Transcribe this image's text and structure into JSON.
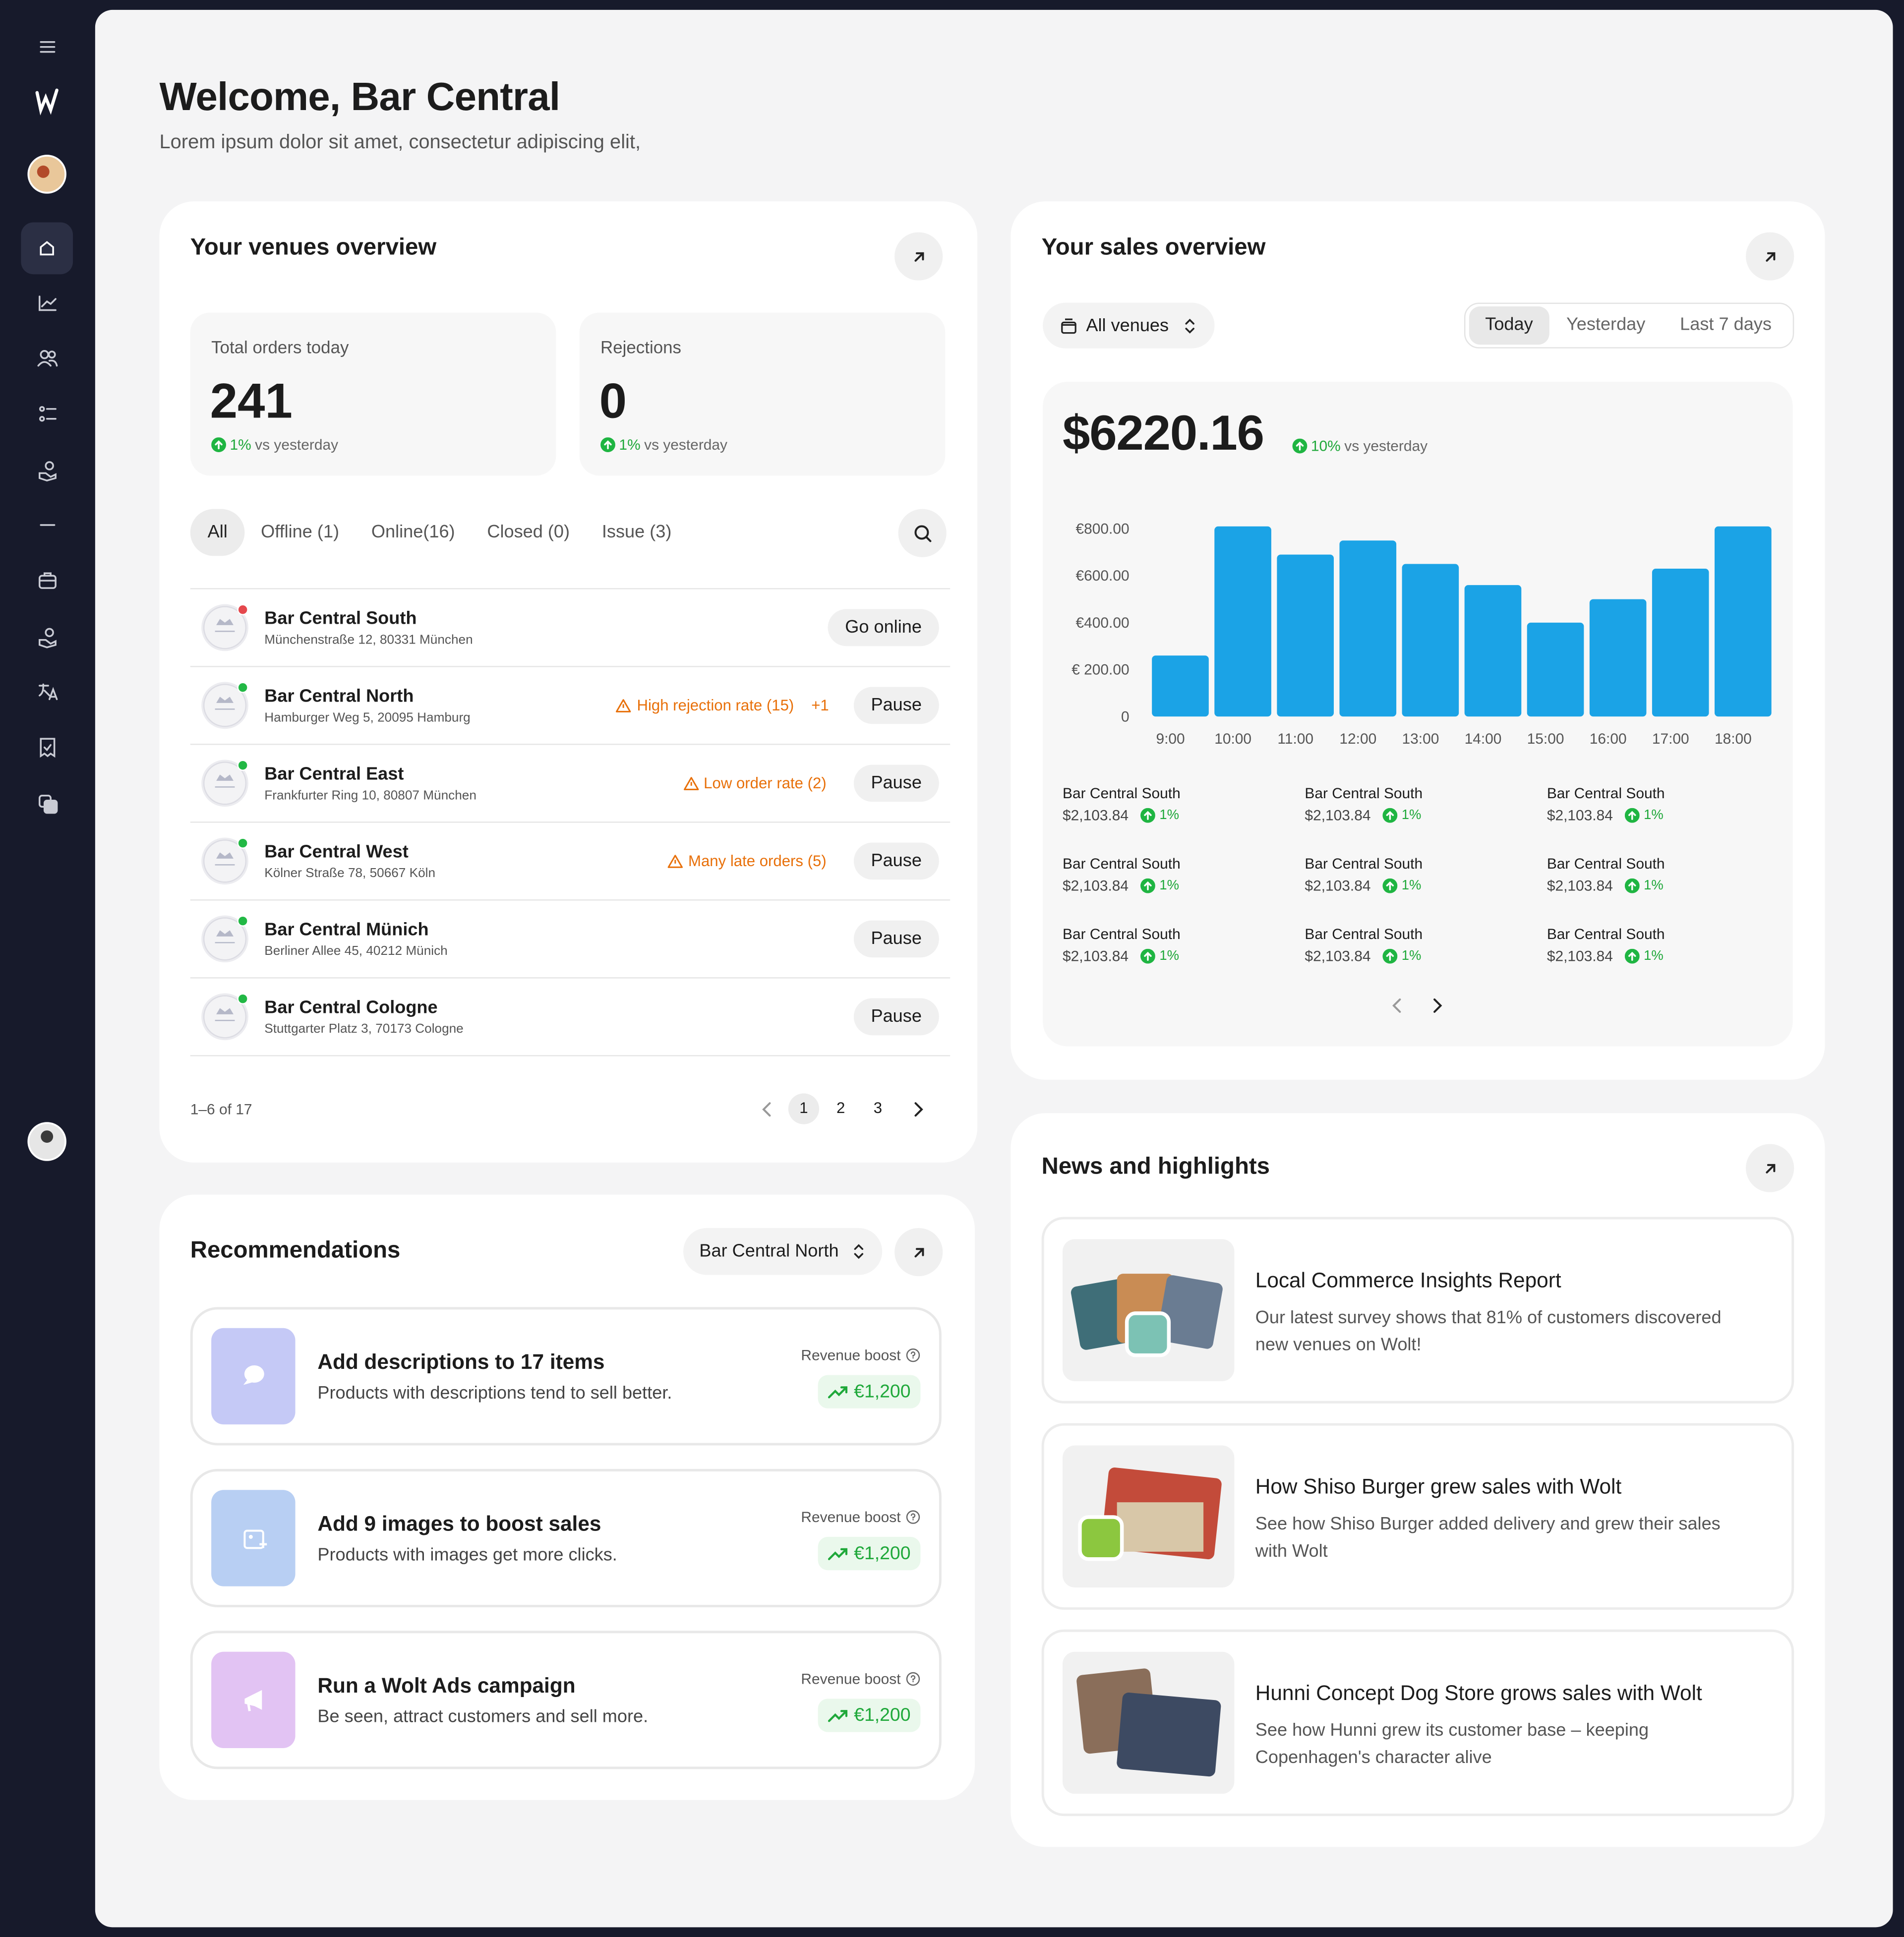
{
  "header": {
    "title": "Welcome, Bar Central",
    "subtitle": "Lorem ipsum dolor sit amet, consectetur adipiscing elit,"
  },
  "venues_overview": {
    "title": "Your venues overview",
    "stats": [
      {
        "label": "Total orders today",
        "value": "241",
        "change": "1%",
        "comparison": "vs yesterday"
      },
      {
        "label": "Rejections",
        "value": "0",
        "change": "1%",
        "comparison": "vs yesterday"
      }
    ],
    "filters": [
      "All",
      "Offline (1)",
      "Online(16)",
      "Closed (0)",
      "Issue (3)"
    ],
    "venues": [
      {
        "name": "Bar Central South",
        "address": "Münchenstraße 12, 80331 München",
        "status_color": "#e5484d",
        "action": "Go online"
      },
      {
        "name": "Bar Central North",
        "address": "Hamburger Weg 5, 20095 Hamburg",
        "status_color": "#22b845",
        "warning": "High rejection rate (15)",
        "extra": "+1",
        "action": "Pause"
      },
      {
        "name": "Bar Central East",
        "address": "Frankfurter Ring 10, 80807 München",
        "status_color": "#22b845",
        "warning": "Low order rate (2)",
        "action": "Pause"
      },
      {
        "name": "Bar Central West",
        "address": "Kölner Straße 78, 50667 Köln",
        "status_color": "#22b845",
        "warning": "Many late orders (5)",
        "action": "Pause"
      },
      {
        "name": "Bar Central Münich",
        "address": "Berliner Allee 45, 40212 Münich",
        "status_color": "#22b845",
        "action": "Pause"
      },
      {
        "name": "Bar Central Cologne",
        "address": "Stuttgarter Platz 3, 70173 Cologne",
        "status_color": "#22b845",
        "action": "Pause"
      }
    ],
    "pagination": {
      "summary": "1–6 of 17",
      "pages": [
        "1",
        "2",
        "3"
      ]
    }
  },
  "sales_overview": {
    "title": "Your sales overview",
    "venue_selector": "All venues",
    "tabs": [
      "Today",
      "Yesterday",
      "Last 7 days"
    ],
    "total": "$6220.16",
    "change": "10%",
    "comparison": "vs yesterday",
    "chart_data": {
      "type": "bar",
      "categories": [
        "9:00",
        "10:00",
        "11:00",
        "12:00",
        "13:00",
        "14:00",
        "15:00",
        "16:00",
        "17:00",
        "18:00"
      ],
      "values": [
        260,
        810,
        690,
        750,
        650,
        560,
        400,
        500,
        630,
        810
      ],
      "color": "#1ba3e6",
      "ylim": [
        0,
        820
      ],
      "yticks": [
        0,
        {
          "value": 200,
          "label": "€ 200.00"
        },
        {
          "value": 400,
          "label": "€400.00"
        },
        {
          "value": 600,
          "label": "€600.00"
        },
        {
          "value": 800,
          "label": "€800.00"
        }
      ],
      "grid": false
    },
    "breakdown": [
      {
        "name": "Bar Central South",
        "amount": "$2,103.84",
        "change": "1%"
      },
      {
        "name": "Bar Central South",
        "amount": "$2,103.84",
        "change": "1%"
      },
      {
        "name": "Bar Central South",
        "amount": "$2,103.84",
        "change": "1%"
      },
      {
        "name": "Bar Central South",
        "amount": "$2,103.84",
        "change": "1%"
      },
      {
        "name": "Bar Central South",
        "amount": "$2,103.84",
        "change": "1%"
      },
      {
        "name": "Bar Central South",
        "amount": "$2,103.84",
        "change": "1%"
      },
      {
        "name": "Bar Central South",
        "amount": "$2,103.84",
        "change": "1%"
      },
      {
        "name": "Bar Central South",
        "amount": "$2,103.84",
        "change": "1%"
      },
      {
        "name": "Bar Central South",
        "amount": "$2,103.84",
        "change": "1%"
      }
    ]
  },
  "recommendations": {
    "title": "Recommendations",
    "venue_selector": "Bar Central North",
    "items": [
      {
        "title": "Add descriptions to 17 items",
        "description": "Products with descriptions tend to sell better.",
        "boost_label": "Revenue boost",
        "boost_value": "€1,200",
        "color": "#c5c9f6"
      },
      {
        "title": "Add 9 images to boost sales",
        "description": "Products with images get more clicks.",
        "boost_label": "Revenue boost",
        "boost_value": "€1,200",
        "color": "#b8cff3"
      },
      {
        "title": "Run a Wolt Ads campaign",
        "description": "Be seen, attract customers and sell more.",
        "boost_label": "Revenue boost",
        "boost_value": "€1,200",
        "color": "#e2c3f3"
      }
    ]
  },
  "news": {
    "title": "News and highlights",
    "items": [
      {
        "title": "Local Commerce Insights Report",
        "description": "Our latest survey shows that 81% of customers discovered new venues on Wolt!"
      },
      {
        "title": "How Shiso Burger grew sales with Wolt",
        "description": "See how Shiso Burger added delivery and grew their sales with Wolt"
      },
      {
        "title": "Hunni Concept Dog Store grows sales with Wolt",
        "description": "See how Hunni grew its customer base – keeping Copenhagen's character alive"
      }
    ]
  }
}
